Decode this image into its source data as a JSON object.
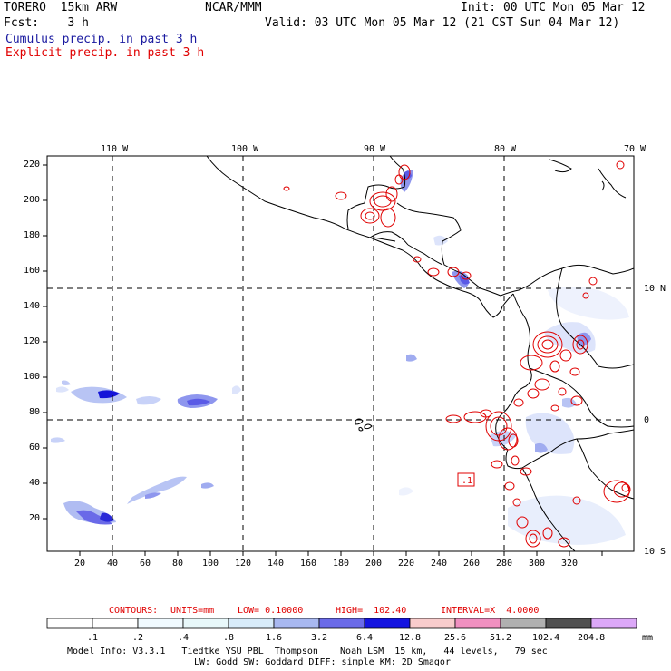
{
  "header": {
    "model": "TORERO  15km ARW",
    "center": "NCAR/MMM",
    "init": "Init: 00 UTC Mon 05 Mar 12",
    "fcst": "Fcst:    3 h",
    "valid": "Valid: 03 UTC Mon 05 Mar 12 (21 CST Sun 04 Mar 12)",
    "field1": "Cumulus precip. in past 3 h",
    "field2": "Explicit precip. in past 3 h"
  },
  "colors": {
    "field1": "#1a1aa0",
    "field2": "#e00000",
    "contour": "#e00000",
    "coast": "#000000"
  },
  "map": {
    "lon_labels": [
      "110 W",
      "100 W",
      "90 W",
      "80 W",
      "70 W"
    ],
    "lat_labels": [
      "10 N",
      "0",
      "10 S"
    ],
    "y_ticks": [
      "220",
      "200",
      "180",
      "160",
      "140",
      "120",
      "100",
      "80",
      "60",
      "40",
      "20"
    ],
    "x_ticks": [
      "20",
      "40",
      "60",
      "80",
      "100",
      "120",
      "140",
      "160",
      "180",
      "200",
      "220",
      "240",
      "260",
      "280",
      "300",
      "320"
    ],
    "contour_label": ".1"
  },
  "contours_info": {
    "label": "CONTOURS:",
    "units": "UNITS=mm",
    "low": "LOW= 0.10000",
    "high": "HIGH=  102.40",
    "interval": "INTERVAL=X  4.0000"
  },
  "colorbar": {
    "levels": [
      ".1",
      ".2",
      ".4",
      ".8",
      "1.6",
      "3.2",
      "6.4",
      "12.8",
      "25.6",
      "51.2",
      "102.4",
      "204.8"
    ],
    "unit": "mm",
    "colors": [
      "#ffffff",
      "#ffffff",
      "#f0faff",
      "#e8f8fa",
      "#d8ecfa",
      "#a8b8f0",
      "#6a6ae8",
      "#1414e0",
      "#f8cccc",
      "#f090c0",
      "#b0b0b0",
      "#505050",
      "#dca8f8"
    ]
  },
  "footer": {
    "line1": "Model Info: V3.3.1   Tiedtke YSU PBL  Thompson    Noah LSM  15 km,   44 levels,   79 sec",
    "line2": "LW: Godd SW: Goddard DIFF: simple KM: 2D Smagor"
  }
}
